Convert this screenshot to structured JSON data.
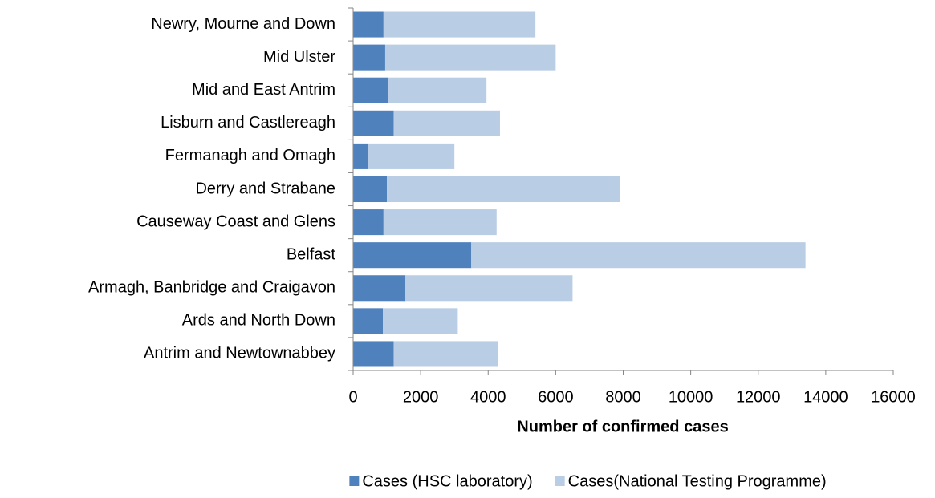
{
  "chart_data": {
    "type": "stacked-bar-horizontal",
    "x_label": "Number of confirmed cases",
    "categories": [
      "Antrim and Newtownabbey",
      "Ards and North Down",
      "Armagh, Banbridge and Craigavon",
      "Belfast",
      "Causeway Coast and Glens",
      "Derry and Strabane",
      "Fermanagh and Omagh",
      "Lisburn and Castlereagh",
      "Mid and East Antrim",
      "Mid Ulster",
      "Newry, Mourne and Down"
    ],
    "series": [
      {
        "name": "Cases (HSC laboratory)",
        "color": "#4f81bd",
        "values": [
          1200,
          880,
          1550,
          3500,
          900,
          1000,
          430,
          1200,
          1050,
          950,
          900
        ]
      },
      {
        "name": "Cases(National Testing Programme)",
        "color": "#b9cde5",
        "values": [
          3100,
          2220,
          4950,
          9900,
          3350,
          6900,
          2570,
          3150,
          2900,
          5050,
          4500
        ]
      }
    ],
    "xlim": [
      0,
      16000
    ],
    "xticks": [
      0,
      2000,
      4000,
      6000,
      8000,
      10000,
      12000,
      14000,
      16000
    ],
    "grid": false,
    "legend": "bottom"
  }
}
